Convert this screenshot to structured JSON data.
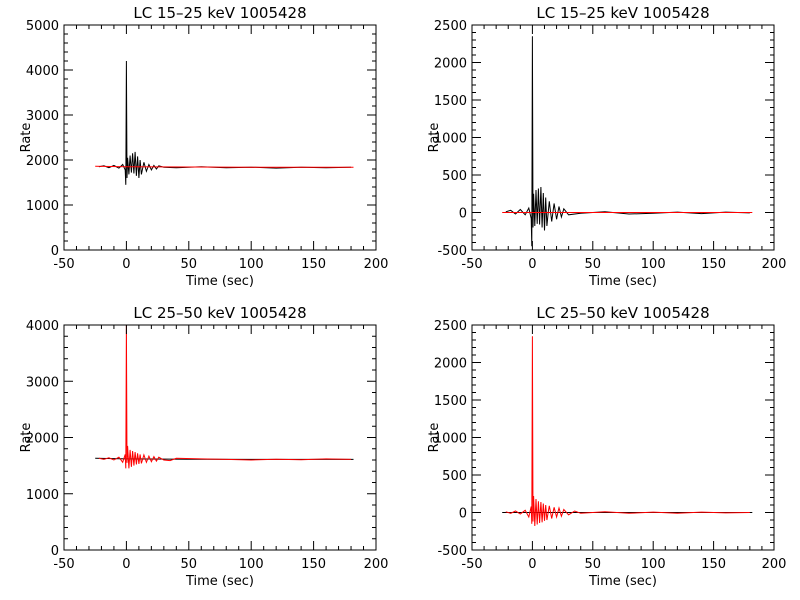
{
  "chart_data": [
    {
      "type": "line",
      "title": "LC 15–25 keV  1005428",
      "xlabel": "Time (sec)",
      "ylabel": "Rate",
      "xlim": [
        -50,
        200
      ],
      "ylim": [
        0,
        5000
      ],
      "xticks": [
        -50,
        0,
        50,
        100,
        150,
        200
      ],
      "yticks": [
        0,
        1000,
        2000,
        3000,
        4000,
        5000
      ],
      "series": [
        {
          "color": "#000000",
          "x": [
            -22,
            -18,
            -14,
            -10,
            -6,
            -3,
            -1,
            -0.5,
            0,
            0.5,
            1,
            2,
            3,
            4,
            5,
            6,
            7,
            8,
            9,
            10,
            11,
            12,
            14,
            16,
            18,
            20,
            22,
            24,
            26,
            30,
            40,
            60,
            80,
            100,
            120,
            140,
            160,
            180
          ],
          "y": [
            1850,
            1870,
            1830,
            1880,
            1820,
            1900,
            1780,
            1450,
            4200,
            1600,
            2050,
            1680,
            2100,
            1720,
            2150,
            1700,
            2180,
            1650,
            2080,
            1600,
            2000,
            1680,
            1950,
            1750,
            1900,
            1780,
            1880,
            1800,
            1870,
            1840,
            1830,
            1850,
            1830,
            1840,
            1820,
            1840,
            1830,
            1840
          ]
        },
        {
          "color": "#ff0000",
          "x": [
            -25,
            0,
            50,
            100,
            150,
            182
          ],
          "y": [
            1860,
            1850,
            1845,
            1840,
            1840,
            1840
          ]
        }
      ]
    },
    {
      "type": "line",
      "title": "LC 15–25 keV  1005428",
      "xlabel": "Time (sec)",
      "ylabel": "Rate",
      "xlim": [
        -50,
        200
      ],
      "ylim": [
        -500,
        2500
      ],
      "xticks": [
        -50,
        0,
        50,
        100,
        150,
        200
      ],
      "yticks": [
        -500,
        0,
        500,
        1000,
        1500,
        2000,
        2500
      ],
      "series": [
        {
          "color": "#000000",
          "x": [
            -22,
            -18,
            -14,
            -10,
            -6,
            -3,
            -1,
            -0.5,
            0,
            0.5,
            1,
            2,
            3,
            4,
            5,
            6,
            7,
            8,
            9,
            10,
            11,
            12,
            14,
            16,
            18,
            20,
            22,
            24,
            26,
            30,
            40,
            60,
            80,
            100,
            120,
            140,
            160,
            180
          ],
          "y": [
            10,
            30,
            -20,
            40,
            -30,
            60,
            -80,
            -450,
            2350,
            -200,
            250,
            -180,
            300,
            -150,
            320,
            -160,
            340,
            -200,
            260,
            -240,
            200,
            -180,
            150,
            -120,
            120,
            -90,
            80,
            -60,
            50,
            -30,
            -10,
            10,
            -20,
            -10,
            5,
            -15,
            5,
            -5
          ]
        },
        {
          "color": "#ff0000",
          "x": [
            -25,
            0,
            50,
            100,
            150,
            182
          ],
          "y": [
            0,
            0,
            0,
            0,
            0,
            0
          ]
        }
      ]
    },
    {
      "type": "line",
      "title": "LC 25–50 keV  1005428",
      "xlabel": "Time (sec)",
      "ylabel": "Rate",
      "xlim": [
        -50,
        200
      ],
      "ylim": [
        0,
        4000
      ],
      "xticks": [
        -50,
        0,
        50,
        100,
        150,
        200
      ],
      "yticks": [
        0,
        1000,
        2000,
        3000,
        4000
      ],
      "series": [
        {
          "color": "#000000",
          "x": [
            -25,
            0,
            50,
            100,
            150,
            182
          ],
          "y": [
            1630,
            1620,
            1615,
            1610,
            1610,
            1610
          ]
        },
        {
          "color": "#ff0000",
          "x": [
            -22,
            -18,
            -14,
            -10,
            -6,
            -3,
            -1,
            -0.5,
            0,
            0.5,
            1,
            2,
            3,
            4,
            5,
            6,
            7,
            8,
            9,
            10,
            11,
            12,
            14,
            16,
            18,
            20,
            22,
            24,
            26,
            30,
            35,
            40,
            60,
            80,
            100,
            120,
            140,
            160,
            180
          ],
          "y": [
            1630,
            1610,
            1640,
            1600,
            1650,
            1560,
            1700,
            1450,
            4000,
            1550,
            1850,
            1450,
            1780,
            1480,
            1760,
            1500,
            1740,
            1520,
            1720,
            1530,
            1700,
            1540,
            1690,
            1560,
            1670,
            1570,
            1660,
            1580,
            1650,
            1600,
            1590,
            1630,
            1620,
            1610,
            1600,
            1615,
            1605,
            1620,
            1610
          ]
        }
      ]
    },
    {
      "type": "line",
      "title": "LC 25–50 keV  1005428",
      "xlabel": "Time (sec)",
      "ylabel": "Rate",
      "xlim": [
        -50,
        200
      ],
      "ylim": [
        -500,
        2500
      ],
      "xticks": [
        -50,
        0,
        50,
        100,
        150,
        200
      ],
      "yticks": [
        -500,
        0,
        500,
        1000,
        1500,
        2000,
        2500
      ],
      "series": [
        {
          "color": "#000000",
          "x": [
            -25,
            0,
            50,
            100,
            150,
            182
          ],
          "y": [
            0,
            0,
            0,
            0,
            0,
            0
          ]
        },
        {
          "color": "#ff0000",
          "x": [
            -22,
            -18,
            -14,
            -10,
            -6,
            -3,
            -1,
            -0.5,
            0,
            0.5,
            1,
            2,
            3,
            4,
            5,
            6,
            7,
            8,
            9,
            10,
            11,
            12,
            14,
            16,
            18,
            20,
            22,
            24,
            26,
            30,
            35,
            40,
            60,
            80,
            100,
            120,
            140,
            160,
            180
          ],
          "y": [
            10,
            -10,
            20,
            -20,
            30,
            -60,
            80,
            -150,
            2350,
            -120,
            220,
            -180,
            180,
            -160,
            150,
            -140,
            140,
            -130,
            120,
            -110,
            100,
            -100,
            90,
            -80,
            70,
            -60,
            60,
            -50,
            40,
            -30,
            20,
            -10,
            10,
            -10,
            5,
            -10,
            5,
            -5,
            0
          ]
        }
      ]
    }
  ]
}
